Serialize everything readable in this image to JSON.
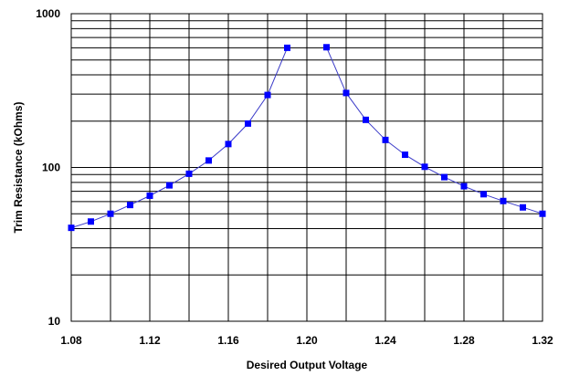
{
  "chart_data": {
    "type": "line",
    "title": "",
    "xlabel": "Desired Output Voltage",
    "ylabel": "Trim Resistance (kOhms)",
    "xlim": [
      1.08,
      1.32
    ],
    "ylim": [
      10,
      1000
    ],
    "y_scale": "log",
    "x_ticks": [
      "1.08",
      "1.12",
      "1.16",
      "1.20",
      "1.24",
      "1.28",
      "1.32"
    ],
    "y_ticks": [
      "10",
      "100",
      "1000"
    ],
    "grid": true,
    "legend": "none",
    "series_color": "#0000ff",
    "line_color": "#3a3ac8",
    "series": [
      {
        "x": [
          1.08,
          1.09,
          1.1,
          1.11,
          1.12,
          1.13,
          1.14,
          1.15,
          1.16,
          1.17,
          1.18,
          1.19
        ],
        "y": [
          40.5,
          44.5,
          50,
          57,
          65.5,
          76.5,
          91,
          111,
          142,
          193,
          296,
          600
        ]
      },
      {
        "x": [
          1.21,
          1.22,
          1.23,
          1.24,
          1.25,
          1.26,
          1.27,
          1.28,
          1.29,
          1.3,
          1.31,
          1.32
        ],
        "y": [
          605,
          305,
          204,
          151,
          121,
          101,
          86.5,
          75.5,
          67,
          60.5,
          55,
          50
        ]
      }
    ]
  }
}
